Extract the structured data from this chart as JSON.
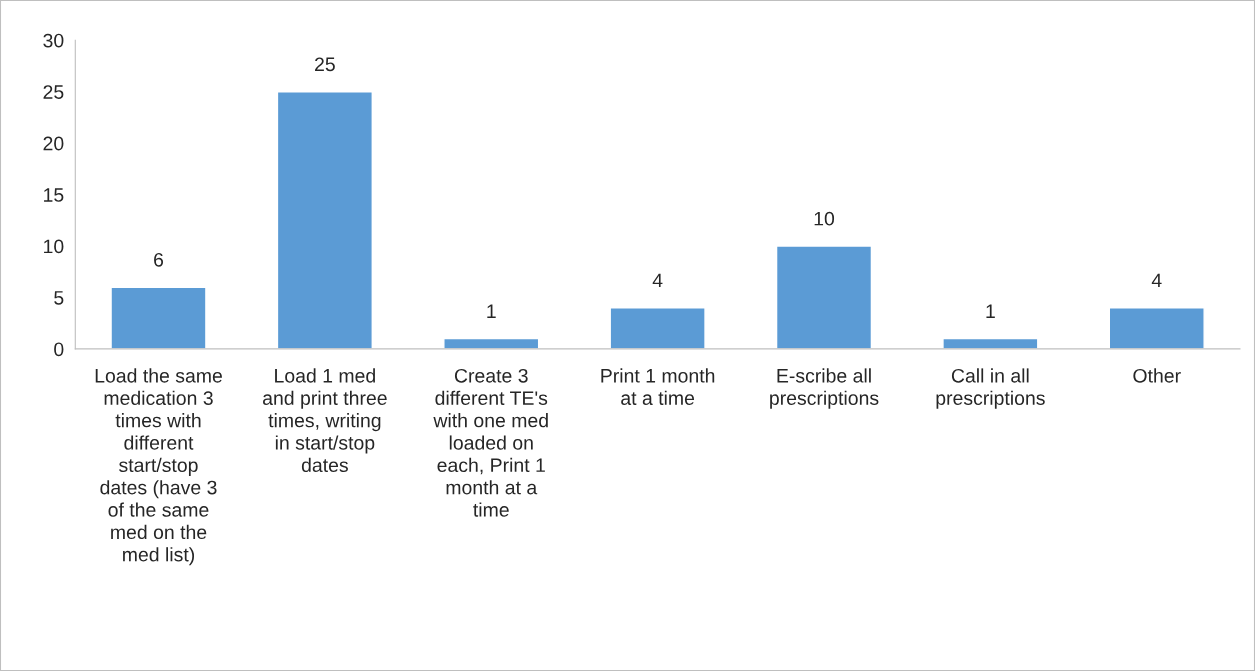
{
  "chart_data": {
    "type": "bar",
    "categories": [
      "Load the same\nmedication 3\ntimes with\ndifferent\nstart/stop\ndates (have 3\nof the same\nmed on the\nmed list)",
      "Load 1 med\nand print three\ntimes, writing\nin start/stop\ndates",
      "Create 3\ndifferent TE's\nwith one med\nloaded on\neach, Print 1\nmonth at a\ntime",
      "Print 1 month\nat a time",
      "E-scribe all\nprescriptions",
      "Call in all\nprescriptions",
      "Other"
    ],
    "values": [
      6,
      25,
      1,
      4,
      10,
      1,
      4
    ],
    "color": "#5b9bd5",
    "ylim": [
      0,
      30
    ],
    "yticks": [
      0,
      5,
      10,
      15,
      20,
      25,
      30
    ],
    "grid": false,
    "data_labels": true
  }
}
